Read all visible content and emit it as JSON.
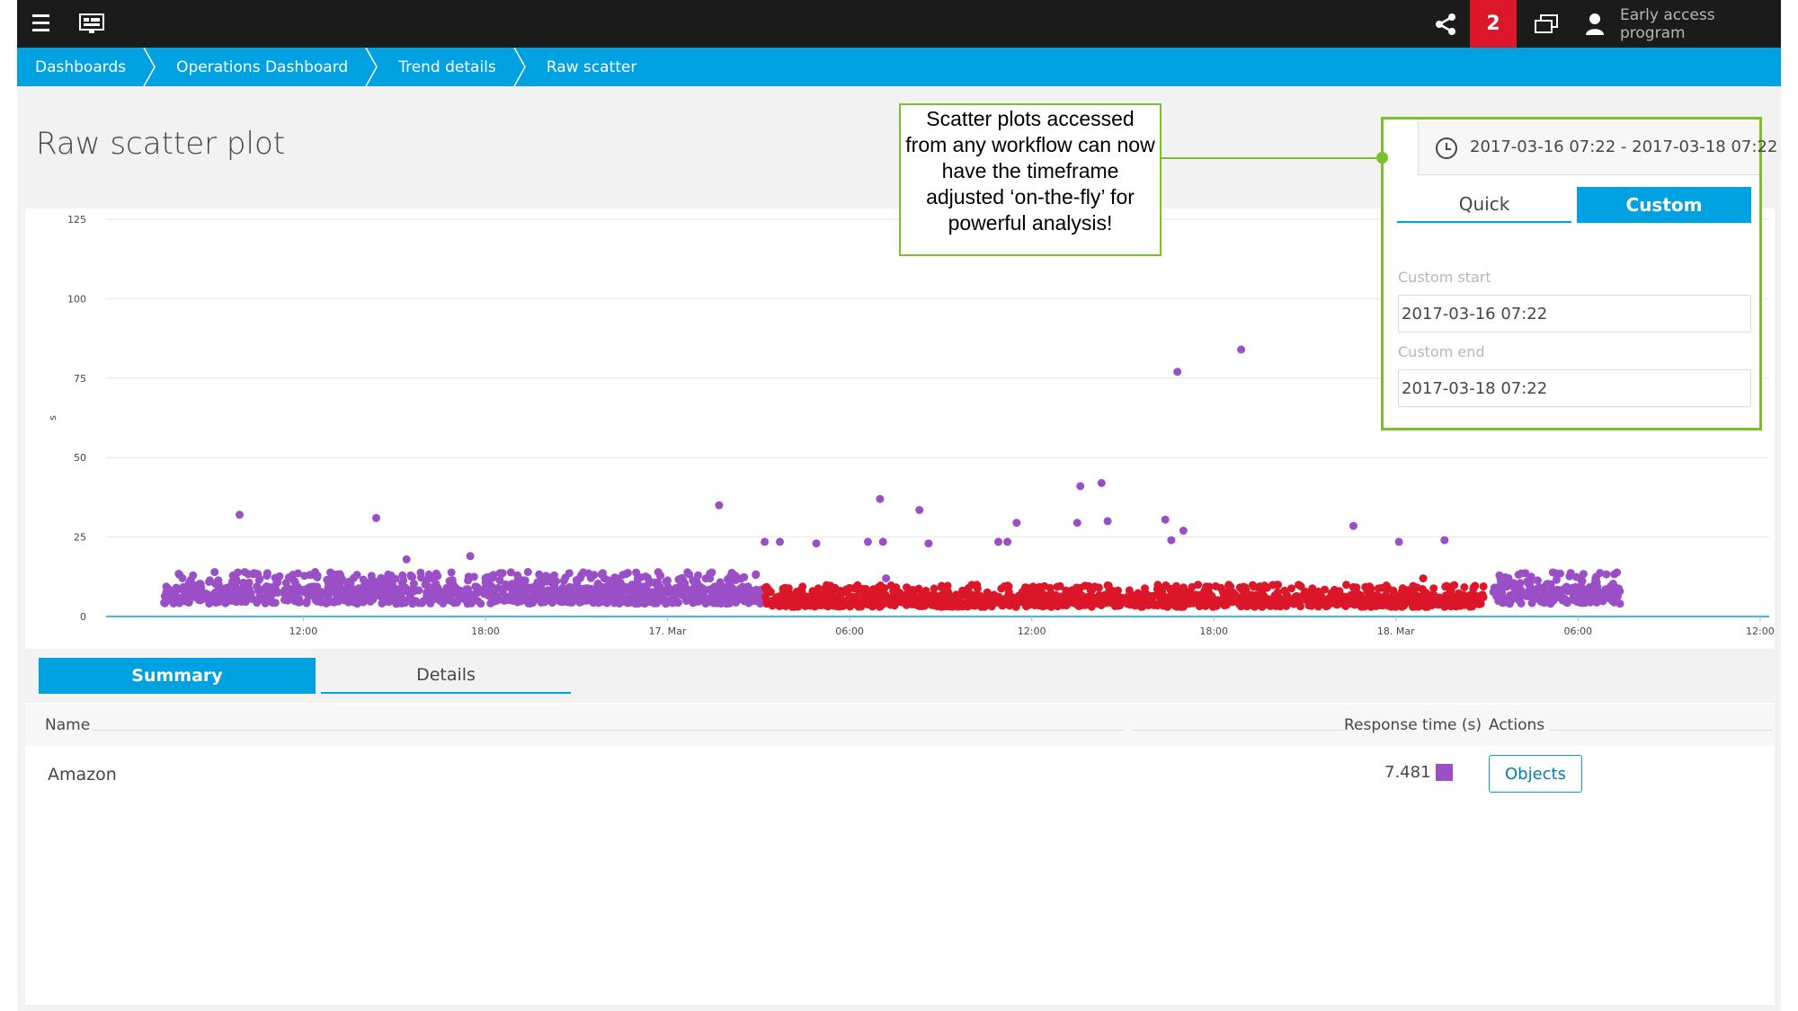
{
  "topbar": {
    "notifications_count": "2",
    "user_label": "Early access program"
  },
  "breadcrumb": [
    "Dashboards",
    "Operations Dashboard",
    "Trend details",
    "Raw scatter"
  ],
  "page_title": "Raw scatter plot",
  "callout_text": "Scatter plots accessed from any workflow can now have the timeframe adjusted ‘on-the-fly’ for powerful analysis!",
  "timeframe": {
    "range": "2017-03-16 07:22 - 2017-03-18 07:22",
    "tab_quick": "Quick",
    "tab_custom": "Custom",
    "custom_start_label": "Custom start",
    "custom_start_value": "2017-03-16 07:22",
    "custom_end_label": "Custom end",
    "custom_end_value": "2017-03-18 07:22"
  },
  "chart_data": {
    "type": "scatter",
    "ylabel": "s",
    "ylim": [
      0,
      125
    ],
    "y_ticks": [
      0,
      25,
      50,
      75,
      100,
      125
    ],
    "x_ticks": [
      "12:00",
      "18:00",
      "17. Mar",
      "06:00",
      "12:00",
      "18:00",
      "18. Mar",
      "06:00",
      "12:00"
    ],
    "x_tick_hours": [
      12,
      18,
      24,
      30,
      36,
      42,
      48,
      54,
      60
    ],
    "x_unit": "hours since 2017-03-16 00:00",
    "grid": true,
    "series": [
      {
        "color": "#9b4fc6",
        "dense_bands": [
          {
            "x_start": 7.4,
            "x_end": 27.1,
            "y_low": 4,
            "y_high": 14
          },
          {
            "x_start": 51.2,
            "x_end": 55.4,
            "y_low": 4,
            "y_high": 14
          }
        ],
        "outliers": [
          {
            "x": 9.9,
            "y": 32
          },
          {
            "x": 14.4,
            "y": 31
          },
          {
            "x": 17.5,
            "y": 19
          },
          {
            "x": 15.4,
            "y": 18
          },
          {
            "x": 19.4,
            "y": 14
          },
          {
            "x": 25.7,
            "y": 35
          },
          {
            "x": 27.2,
            "y": 23.5
          },
          {
            "x": 27.7,
            "y": 23.5
          },
          {
            "x": 28.9,
            "y": 23
          },
          {
            "x": 30.6,
            "y": 23.5
          },
          {
            "x": 31.1,
            "y": 23.5
          },
          {
            "x": 32.6,
            "y": 23
          },
          {
            "x": 31.0,
            "y": 37
          },
          {
            "x": 32.3,
            "y": 33.5
          },
          {
            "x": 34.9,
            "y": 23.5
          },
          {
            "x": 35.2,
            "y": 23.5
          },
          {
            "x": 35.5,
            "y": 29.5
          },
          {
            "x": 37.5,
            "y": 29.5
          },
          {
            "x": 37.6,
            "y": 41
          },
          {
            "x": 38.3,
            "y": 42
          },
          {
            "x": 38.5,
            "y": 30
          },
          {
            "x": 40.4,
            "y": 30.5
          },
          {
            "x": 40.6,
            "y": 24
          },
          {
            "x": 41.0,
            "y": 27
          },
          {
            "x": 40.8,
            "y": 77
          },
          {
            "x": 42.9,
            "y": 84
          },
          {
            "x": 46.6,
            "y": 28.5
          },
          {
            "x": 48.1,
            "y": 23.5
          },
          {
            "x": 49.6,
            "y": 24
          },
          {
            "x": 31.2,
            "y": 12
          }
        ]
      },
      {
        "color": "#dc172a",
        "dense_bands": [
          {
            "x_start": 27.2,
            "x_end": 50.9,
            "y_low": 3,
            "y_high": 10
          }
        ],
        "outliers": [
          {
            "x": 48.9,
            "y": 12
          }
        ]
      }
    ]
  },
  "tabs": {
    "summary": "Summary",
    "details": "Details"
  },
  "table": {
    "col_name": "Name",
    "col_response": "Response time (s)",
    "col_actions": "Actions",
    "rows": [
      {
        "name": "Amazon",
        "response": "7.481",
        "swatch_color": "#9b4fc6",
        "action": "Objects"
      }
    ]
  }
}
